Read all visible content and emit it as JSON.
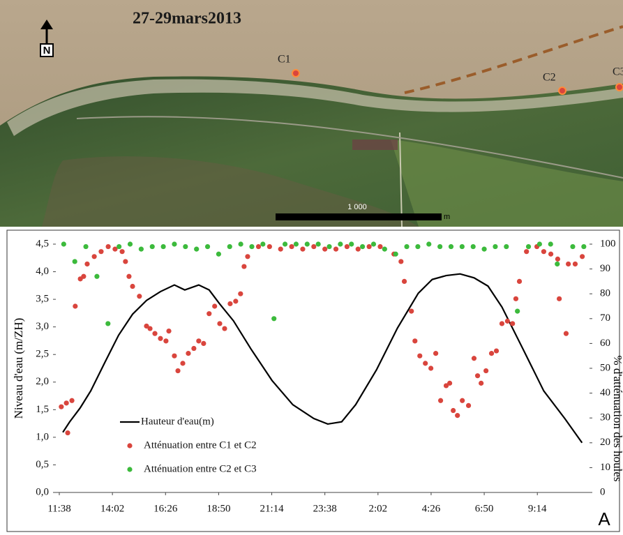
{
  "map": {
    "title": "27-29mars2013",
    "north": "N",
    "stations": [
      "C1",
      "C2",
      "C3"
    ],
    "scale_label": "1 000",
    "scale_unit": "m"
  },
  "panel_label": "A",
  "chart_data": {
    "type": "line_scatter",
    "ylabel": "Niveau d'eau (m/ZH)",
    "y2label": "% d'atténuation des houles",
    "xlim": [
      0,
      23.8
    ],
    "xticks": [
      {
        "value": 0,
        "label": "11:38"
      },
      {
        "value": 2.4,
        "label": "14:02"
      },
      {
        "value": 4.8,
        "label": "16:26"
      },
      {
        "value": 7.2,
        "label": "18:50"
      },
      {
        "value": 9.6,
        "label": "21:14"
      },
      {
        "value": 12,
        "label": "23:38"
      },
      {
        "value": 14.4,
        "label": "2:02"
      },
      {
        "value": 16.8,
        "label": "4:26"
      },
      {
        "value": 19.2,
        "label": "6:50"
      },
      {
        "value": 21.6,
        "label": "9:14"
      }
    ],
    "ylim": [
      0,
      4.5
    ],
    "yticks": [
      {
        "value": 0,
        "label": "0,0"
      },
      {
        "value": 0.5,
        "label": "0,5"
      },
      {
        "value": 1,
        "label": "1,0"
      },
      {
        "value": 1.5,
        "label": "1,5"
      },
      {
        "value": 2,
        "label": "2,0"
      },
      {
        "value": 2.5,
        "label": "2,5"
      },
      {
        "value": 3,
        "label": "3,0"
      },
      {
        "value": 3.5,
        "label": "3,5"
      },
      {
        "value": 4,
        "label": "4,0"
      },
      {
        "value": 4.5,
        "label": "4,5"
      }
    ],
    "y2lim": [
      0,
      100
    ],
    "y2ticks": [
      0,
      10,
      20,
      30,
      40,
      50,
      60,
      70,
      80,
      90,
      100
    ],
    "series": [
      {
        "name": "Hauteur d'eau(m)",
        "type": "line",
        "color": "#000000",
        "x": [
          0.16,
          0.47,
          0.94,
          1.42,
          2.05,
          2.68,
          3.31,
          3.94,
          4.57,
          5.2,
          5.67,
          6.3,
          6.77,
          7.24,
          7.87,
          8.66,
          9.61,
          10.55,
          11.5,
          12.13,
          12.76,
          13.39,
          14.33,
          15.28,
          16.22,
          16.85,
          17.48,
          18.11,
          18.74,
          19.37,
          20,
          20.95,
          21.89,
          22.84,
          23.62
        ],
        "values": [
          1.09,
          1.28,
          1.53,
          1.84,
          2.35,
          2.85,
          3.23,
          3.48,
          3.64,
          3.76,
          3.67,
          3.76,
          3.67,
          3.42,
          3.11,
          2.6,
          2.03,
          1.59,
          1.34,
          1.24,
          1.28,
          1.59,
          2.22,
          2.98,
          3.61,
          3.86,
          3.93,
          3.96,
          3.89,
          3.74,
          3.36,
          2.6,
          1.84,
          1.34,
          0.9
        ]
      },
      {
        "name": "Atténuation entre C1 et C2",
        "type": "scatter",
        "axis": "y2",
        "color": "#d9453d",
        "x": [
          0.09,
          0.32,
          0.57,
          0.38,
          0.72,
          0.95,
          1.1,
          1.26,
          1.58,
          1.89,
          2.21,
          2.52,
          2.84,
          2.99,
          3.15,
          3.31,
          3.62,
          3.94,
          4.1,
          4.32,
          4.57,
          4.82,
          4.95,
          5.2,
          5.36,
          5.58,
          5.83,
          6.08,
          6.3,
          6.52,
          6.77,
          7.02,
          7.25,
          7.47,
          7.72,
          7.97,
          8.19,
          8.35,
          8.51,
          9,
          9.5,
          10,
          10.5,
          11,
          11.5,
          12,
          12.5,
          13,
          13.5,
          14,
          14.5,
          15.12,
          15.44,
          15.59,
          15.91,
          16.07,
          16.29,
          16.54,
          16.79,
          17.01,
          17.23,
          17.48,
          17.64,
          17.8,
          17.99,
          18.21,
          18.49,
          18.74,
          18.9,
          19.06,
          19.28,
          19.53,
          19.75,
          20,
          20.25,
          20.48,
          20.63,
          20.79,
          21.11,
          21.58,
          21.89,
          22.21,
          22.52,
          22.59,
          22.9,
          23,
          23.31,
          23.63
        ],
        "values": [
          34.5,
          36,
          37,
          24,
          75,
          86,
          87,
          92,
          95,
          97,
          99,
          98,
          97,
          93,
          87,
          83,
          79,
          67,
          66,
          64,
          62,
          61,
          65,
          55,
          49,
          52,
          56,
          58,
          61,
          60,
          72,
          75,
          68,
          66,
          76,
          77,
          80,
          91,
          95,
          99,
          99,
          98,
          99,
          98,
          99,
          98,
          98,
          99,
          98,
          99,
          99,
          96,
          93,
          85,
          73,
          61,
          55,
          52,
          50,
          56,
          37,
          43,
          44,
          33,
          31,
          37,
          35,
          54,
          47,
          44,
          49,
          56,
          57,
          68,
          69,
          68,
          78,
          85,
          97,
          99,
          97,
          96,
          94,
          78,
          64,
          92,
          92,
          95
        ]
      },
      {
        "name": "Atténuation entre C2 et C3",
        "type": "scatter",
        "axis": "y2",
        "color": "#3cba3c",
        "x": [
          0.2,
          0.7,
          1.2,
          1.7,
          2.2,
          2.7,
          3.2,
          3.7,
          4.2,
          4.7,
          5.2,
          5.7,
          6.2,
          6.7,
          7.2,
          7.7,
          8.2,
          8.7,
          9.2,
          9.7,
          10.2,
          10.7,
          11.2,
          11.7,
          12.2,
          12.7,
          13.2,
          13.7,
          14.2,
          14.7,
          15.2,
          15.7,
          16.2,
          16.7,
          17.2,
          17.7,
          18.2,
          18.7,
          19.2,
          19.7,
          20.2,
          20.7,
          21.2,
          21.7,
          22.2,
          22.5,
          23.2,
          23.7
        ],
        "values": [
          100,
          93,
          99,
          87,
          68,
          99,
          100,
          98,
          99,
          99,
          100,
          99,
          98,
          99,
          96,
          99,
          100,
          99,
          100,
          70,
          100,
          100,
          100,
          100,
          99,
          100,
          100,
          99,
          100,
          98,
          96,
          99,
          99,
          100,
          99,
          99,
          99,
          99,
          98,
          99,
          99,
          73,
          99,
          100,
          100,
          92,
          99,
          99
        ]
      }
    ]
  }
}
